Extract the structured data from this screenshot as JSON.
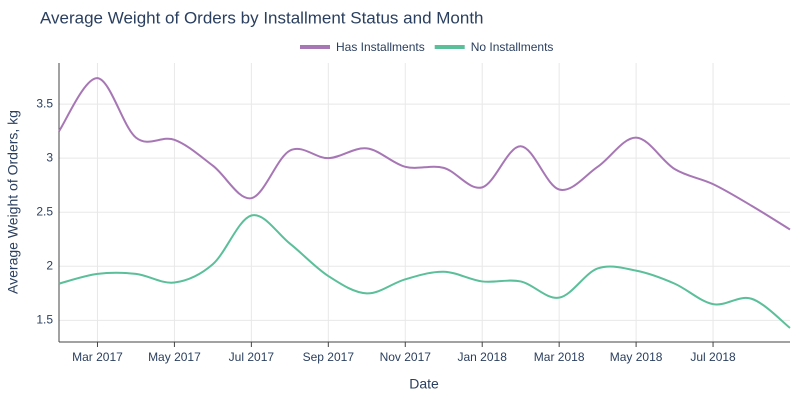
{
  "chart_data": {
    "type": "line",
    "title": "Average Weight of Orders by Installment Status and Month",
    "x_label": "Date",
    "y_label": "Average Weight of Orders, kg",
    "x": [
      "2017-02",
      "2017-03",
      "2017-04",
      "2017-05",
      "2017-06",
      "2017-07",
      "2017-08",
      "2017-09",
      "2017-10",
      "2017-11",
      "2017-12",
      "2018-01",
      "2018-02",
      "2018-03",
      "2018-04",
      "2018-05",
      "2018-06",
      "2018-07",
      "2018-08",
      "2018-09"
    ],
    "series": [
      {
        "name": "Has Installments",
        "color": "#a777b5",
        "values": [
          3.25,
          3.74,
          3.19,
          3.17,
          2.93,
          2.63,
          3.07,
          3.0,
          3.09,
          2.92,
          2.91,
          2.73,
          3.11,
          2.71,
          2.92,
          3.19,
          2.9,
          2.76,
          2.56,
          2.34
        ]
      },
      {
        "name": "No Installments",
        "color": "#5bbf9a",
        "values": [
          1.84,
          1.93,
          1.93,
          1.85,
          2.02,
          2.47,
          2.21,
          1.91,
          1.75,
          1.88,
          1.95,
          1.86,
          1.86,
          1.71,
          1.98,
          1.96,
          1.84,
          1.65,
          1.7,
          1.43
        ]
      }
    ],
    "xlim": [
      "2017-02",
      "2018-09"
    ],
    "xticks": [
      {
        "value": "2017-03",
        "label": "Mar 2017"
      },
      {
        "value": "2017-05",
        "label": "May 2017"
      },
      {
        "value": "2017-07",
        "label": "Jul 2017"
      },
      {
        "value": "2017-09",
        "label": "Sep 2017"
      },
      {
        "value": "2017-11",
        "label": "Nov 2017"
      },
      {
        "value": "2018-01",
        "label": "Jan 2018"
      },
      {
        "value": "2018-03",
        "label": "Mar 2018"
      },
      {
        "value": "2018-05",
        "label": "May 2018"
      },
      {
        "value": "2018-07",
        "label": "Jul 2018"
      }
    ],
    "ylim": [
      1.3,
      3.88
    ],
    "yticks": [
      1.5,
      2,
      2.5,
      3,
      3.5
    ],
    "grid": true,
    "legend": "top"
  }
}
